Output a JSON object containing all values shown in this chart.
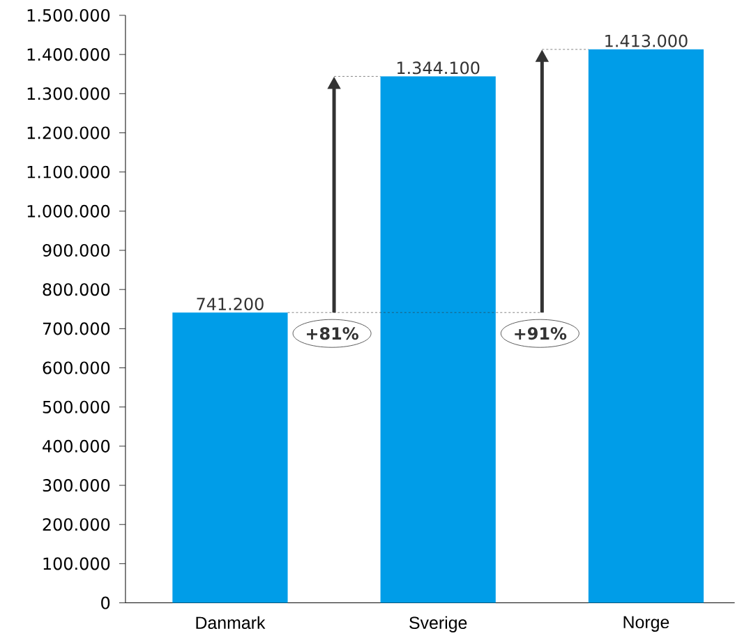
{
  "chart_data": {
    "type": "bar",
    "categories": [
      "Danmark",
      "Sverige",
      "Norge"
    ],
    "values": [
      741200,
      1344100,
      1413000
    ],
    "color": "#009de8",
    "value_labels": [
      "741.200",
      "1.344.100",
      "1.413.000"
    ],
    "ylim": [
      0,
      1500000
    ],
    "yticks": [
      0,
      {
        "value": 100000,
        "label": "100.000"
      },
      {
        "value": 200000,
        "label": "200.000"
      },
      {
        "value": 300000,
        "label": "300.000"
      },
      {
        "value": 400000,
        "label": "400.000"
      },
      {
        "value": 500000,
        "label": "500.000"
      },
      {
        "value": 600000,
        "label": "600.000"
      },
      {
        "value": 700000,
        "label": "700.000"
      },
      {
        "value": 800000,
        "label": "800.000"
      },
      {
        "value": 900000,
        "label": "900.000"
      },
      {
        "value": 1000000,
        "label": "1.000.000"
      },
      {
        "value": 1100000,
        "label": "1.100.000"
      },
      {
        "value": 1200000,
        "label": "1.200.000"
      },
      {
        "value": 1300000,
        "label": "1.300.000"
      },
      {
        "value": 1400000,
        "label": "1.400.000"
      },
      {
        "value": 1500000,
        "label": "1.500.000"
      }
    ],
    "annotations": [
      "+81%",
      "+91%"
    ]
  }
}
